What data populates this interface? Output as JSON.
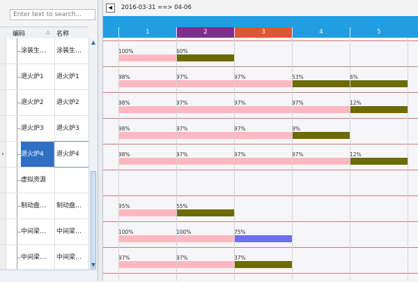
{
  "search": {
    "placeholder": "Enter text to search..."
  },
  "table": {
    "col_code": "编码",
    "col_name": "名称",
    "rows": [
      {
        "code": "涂装生…",
        "name": "涂装生…",
        "selected": false
      },
      {
        "code": "退火炉1",
        "name": "退火炉1",
        "selected": false
      },
      {
        "code": "退火炉2",
        "name": "退火炉2",
        "selected": false
      },
      {
        "code": "退火炉3",
        "name": "退火炉3",
        "selected": false
      },
      {
        "code": "退火炉4",
        "name": "退火炉4",
        "selected": true
      },
      {
        "code": "虚拟资源",
        "name": "",
        "selected": false
      },
      {
        "code": "制动盘…",
        "name": "制动盘…",
        "selected": false
      },
      {
        "code": "中间梁…",
        "name": "中间梁…",
        "selected": false
      },
      {
        "code": "中间梁…",
        "name": "中间梁…",
        "selected": false
      }
    ]
  },
  "gantt": {
    "range": "2016-03-31 ==> 04-06",
    "days": [
      {
        "label": "1",
        "color": "#1f9ee1"
      },
      {
        "label": "2",
        "color": "#7b2f8c"
      },
      {
        "label": "3",
        "color": "#e0543a"
      },
      {
        "label": "4",
        "color": "#1f9ee1"
      },
      {
        "label": "5",
        "color": "#1f9ee1"
      }
    ],
    "colors": {
      "pink": "#ffb8c0",
      "olive": "#6b6b00",
      "blue": "#6f6ff0"
    },
    "rows": [
      [
        {
          "day": 0,
          "label": "100%",
          "color": "pink",
          "fill": 1.0
        },
        {
          "day": 1,
          "label": "60%",
          "color": "olive",
          "fill": 1.0
        }
      ],
      [
        {
          "day": 0,
          "label": "98%",
          "color": "pink",
          "fill": 1.0
        },
        {
          "day": 1,
          "label": "97%",
          "color": "pink",
          "fill": 1.0
        },
        {
          "day": 2,
          "label": "97%",
          "color": "pink",
          "fill": 1.0
        },
        {
          "day": 3,
          "label": "53%",
          "color": "olive",
          "fill": 1.0
        },
        {
          "day": 4,
          "label": "6%",
          "color": "olive",
          "fill": 1.0
        }
      ],
      [
        {
          "day": 0,
          "label": "98%",
          "color": "pink",
          "fill": 1.0
        },
        {
          "day": 1,
          "label": "97%",
          "color": "pink",
          "fill": 1.0
        },
        {
          "day": 2,
          "label": "97%",
          "color": "pink",
          "fill": 1.0
        },
        {
          "day": 3,
          "label": "97%",
          "color": "pink",
          "fill": 1.0
        },
        {
          "day": 4,
          "label": "12%",
          "color": "olive",
          "fill": 1.0
        }
      ],
      [
        {
          "day": 0,
          "label": "98%",
          "color": "pink",
          "fill": 1.0
        },
        {
          "day": 1,
          "label": "97%",
          "color": "pink",
          "fill": 1.0
        },
        {
          "day": 2,
          "label": "97%",
          "color": "pink",
          "fill": 1.0
        },
        {
          "day": 3,
          "label": "9%",
          "color": "olive",
          "fill": 1.0
        }
      ],
      [
        {
          "day": 0,
          "label": "98%",
          "color": "pink",
          "fill": 1.0
        },
        {
          "day": 1,
          "label": "97%",
          "color": "pink",
          "fill": 1.0
        },
        {
          "day": 2,
          "label": "97%",
          "color": "pink",
          "fill": 1.0
        },
        {
          "day": 3,
          "label": "97%",
          "color": "pink",
          "fill": 1.0
        },
        {
          "day": 4,
          "label": "12%",
          "color": "olive",
          "fill": 1.0
        }
      ],
      [],
      [
        {
          "day": 0,
          "label": "95%",
          "color": "pink",
          "fill": 1.0
        },
        {
          "day": 1,
          "label": "55%",
          "color": "olive",
          "fill": 1.0
        }
      ],
      [
        {
          "day": 0,
          "label": "100%",
          "color": "pink",
          "fill": 1.0
        },
        {
          "day": 1,
          "label": "100%",
          "color": "pink",
          "fill": 1.0
        },
        {
          "day": 2,
          "label": "75%",
          "color": "blue",
          "fill": 1.0
        }
      ],
      [
        {
          "day": 0,
          "label": "97%",
          "color": "pink",
          "fill": 1.0
        },
        {
          "day": 1,
          "label": "97%",
          "color": "pink",
          "fill": 1.0
        },
        {
          "day": 2,
          "label": "37%",
          "color": "olive",
          "fill": 1.0
        }
      ]
    ]
  }
}
